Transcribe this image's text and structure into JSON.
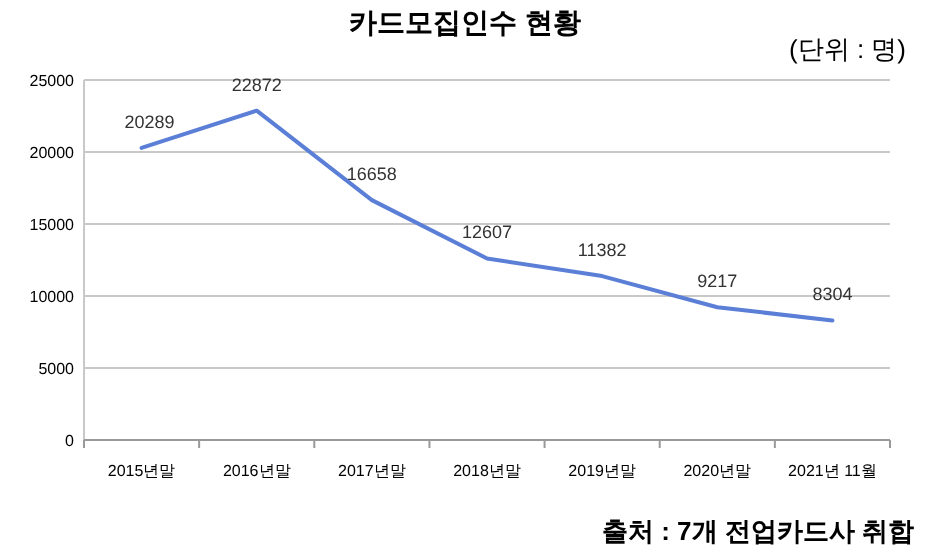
{
  "chart_data": {
    "type": "line",
    "title": "카드모집인수 현황",
    "subtitle": "(단위 : 명)",
    "categories": [
      "2015년말",
      "2016년말",
      "2017년말",
      "2018년말",
      "2019년말",
      "2020년말",
      "2021년 11월"
    ],
    "series": [
      {
        "color": "#5b7fd6",
        "values": [
          20289,
          22872,
          16658,
          12607,
          11382,
          9217,
          8304
        ]
      }
    ],
    "ylim": [
      0,
      25000
    ],
    "yticks": [
      0,
      5000,
      10000,
      15000,
      20000,
      25000
    ],
    "grid": "y",
    "data_labels": true,
    "marker": "none",
    "line_style": "solid",
    "annotations": [
      "출처 : 7개 전업카드사 취합"
    ]
  }
}
